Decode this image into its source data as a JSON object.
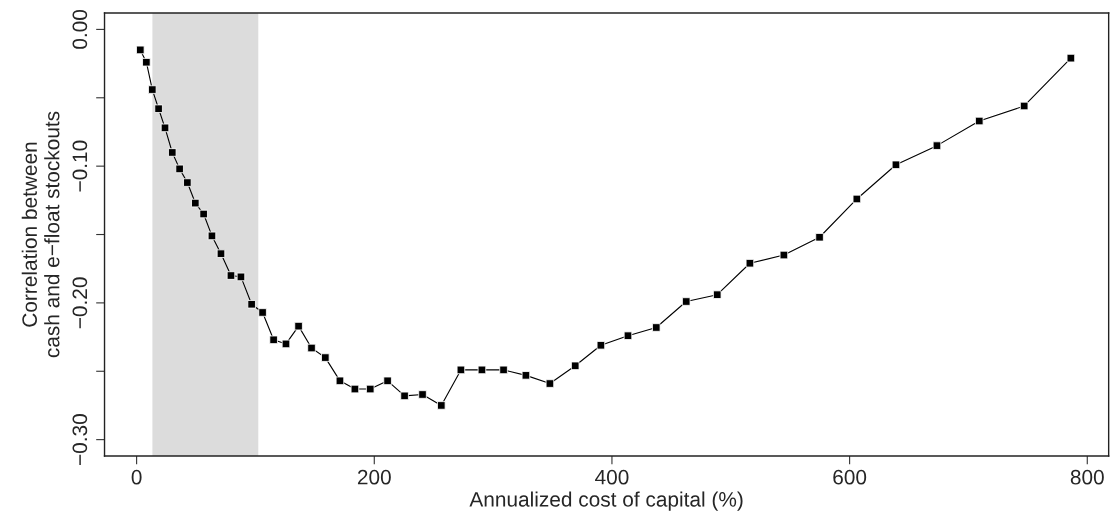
{
  "chart_data": {
    "type": "line",
    "xlabel": "Annualized cost of capital (%)",
    "ylabel": "Correlation between\ncash and e−float stockouts",
    "x": [
      3.1,
      8.2,
      13.2,
      18.5,
      23.9,
      30.0,
      36.2,
      42.7,
      49.4,
      56.4,
      63.4,
      71.0,
      79.4,
      87.8,
      96.8,
      106.0,
      115.3,
      125.7,
      136.3,
      147.2,
      158.8,
      171.1,
      183.7,
      196.6,
      211.2,
      225.5,
      240.6,
      256.4,
      272.9,
      290.6,
      308.8,
      327.6,
      347.8,
      369.1,
      390.7,
      413.5,
      437.3,
      462.5,
      488.6,
      516.1,
      544.7,
      574.7,
      606.1,
      639.0,
      673.5,
      709.1,
      746.9,
      786.2
    ],
    "series": [
      {
        "color": "#000000",
        "values": [
          -0.015,
          -0.024,
          -0.044,
          -0.058,
          -0.072,
          -0.09,
          -0.102,
          -0.112,
          -0.127,
          -0.135,
          -0.151,
          -0.164,
          -0.18,
          -0.181,
          -0.201,
          -0.207,
          -0.227,
          -0.23,
          -0.217,
          -0.233,
          -0.24,
          -0.257,
          -0.263,
          -0.263,
          -0.257,
          -0.268,
          -0.267,
          -0.275,
          -0.249,
          -0.249,
          -0.249,
          -0.253,
          -0.259,
          -0.246,
          -0.231,
          -0.224,
          -0.218,
          -0.199,
          -0.194,
          -0.171,
          -0.165,
          -0.152,
          -0.124,
          -0.099,
          -0.085,
          -0.067,
          -0.056,
          -0.021
        ]
      }
    ],
    "xlim": [
      -27,
      818
    ],
    "ylim": [
      -0.312,
      0.012
    ],
    "xticks": [
      0,
      200,
      400,
      600,
      800
    ],
    "yticks": [
      {
        "value": 0,
        "label": "0.00"
      },
      {
        "value": -0.05,
        "label": null
      },
      {
        "value": -0.1,
        "label": "−0.10"
      },
      {
        "value": -0.15,
        "label": null
      },
      {
        "value": -0.2,
        "label": "−0.20"
      },
      {
        "value": -0.25,
        "label": null
      },
      {
        "value": -0.3,
        "label": "−0.30"
      }
    ],
    "bands": [
      {
        "axis": "x",
        "from": 13.3,
        "to": 102.4,
        "color": "#dcdcdc"
      }
    ],
    "marker": "square",
    "line_style": "solid",
    "grid": false,
    "legend": false
  }
}
